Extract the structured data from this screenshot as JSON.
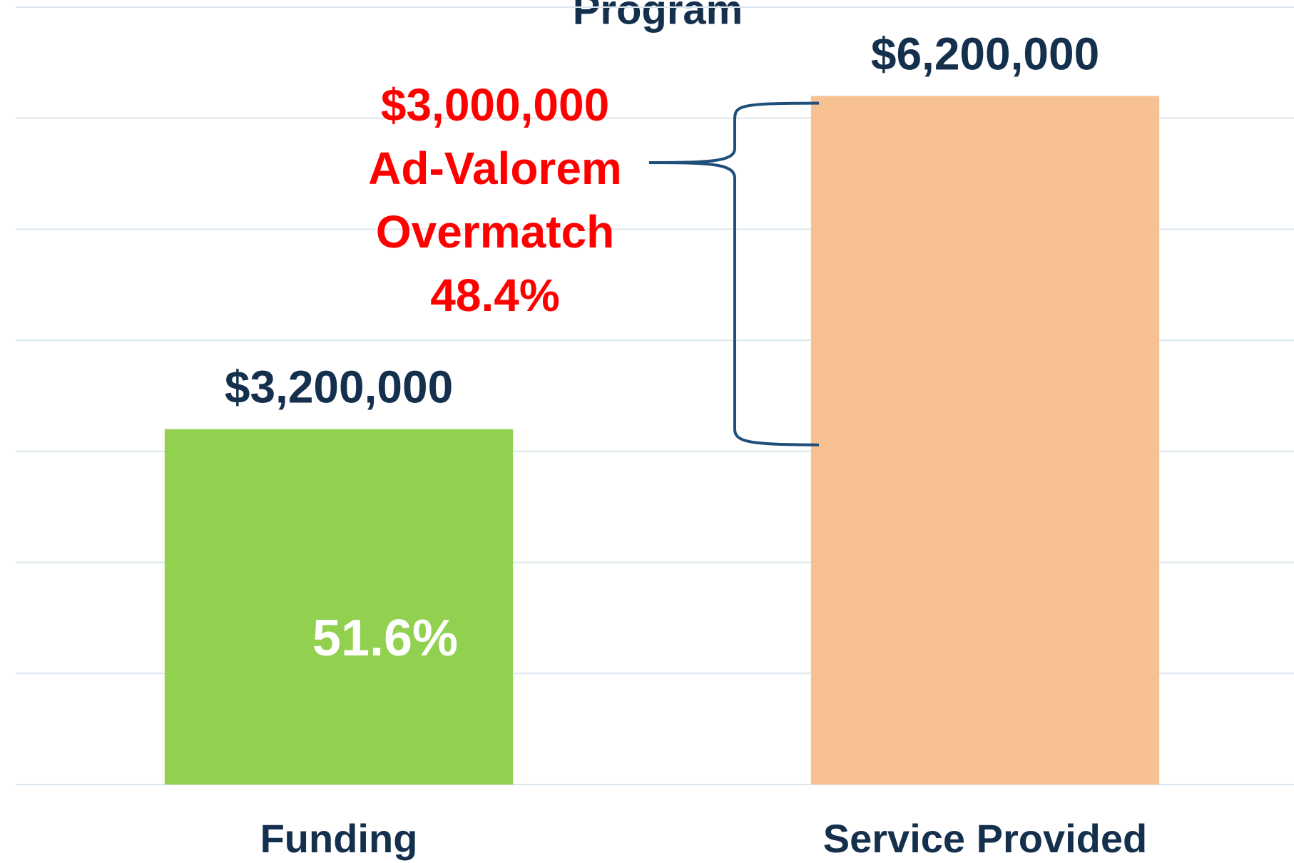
{
  "chart_data": {
    "type": "bar",
    "title": "Program",
    "categories": [
      "Funding",
      "Service Provided"
    ],
    "values": [
      3200000,
      6200000
    ],
    "value_labels": [
      "$3,200,000",
      "$6,200,000"
    ],
    "colors": [
      "#92d050",
      "#f8c193"
    ],
    "ylim": [
      0,
      7000000
    ],
    "yticks": [
      0,
      1000000,
      2000000,
      3000000,
      4000000,
      5000000,
      6000000,
      7000000
    ],
    "grid": true,
    "annotations": [
      {
        "lines": [
          "$3,000,000",
          "Ad-Valorem",
          "Overmatch",
          "48.4%"
        ],
        "color": "#ff0000"
      },
      {
        "text": "51.6%",
        "color": "#ffffff"
      }
    ]
  }
}
